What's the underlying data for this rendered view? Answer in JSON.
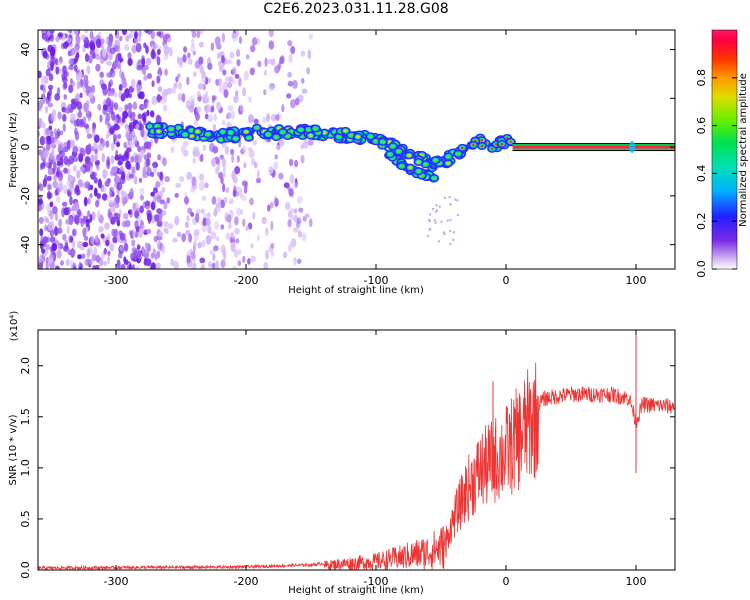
{
  "title": "C2E6.2023.031.11.28.G08",
  "chart_data": [
    {
      "type": "heatmap",
      "xlabel": "Height of straight line (km)",
      "ylabel": "Frequency (Hz)",
      "xlim": [
        -360,
        130
      ],
      "ylim": [
        -50,
        48
      ],
      "xticks": [
        -300,
        -200,
        -100,
        0,
        100
      ],
      "yticks": [
        -40,
        -20,
        0,
        20,
        40
      ],
      "colorbar": {
        "label": "Normalized spectral amplitude",
        "range": [
          0.0,
          1.0
        ],
        "ticks": [
          0.0,
          0.2,
          0.4,
          0.6,
          0.8
        ],
        "tick_labels": [
          "0.0",
          "0.2",
          "0.4",
          "0.6",
          "0.8"
        ]
      },
      "ridge": {
        "x": [
          -270,
          -250,
          -230,
          -210,
          -190,
          -170,
          -150,
          -130,
          -110,
          -95,
          -85,
          -75,
          -65,
          -58,
          -50,
          -40,
          -30,
          -20,
          -10,
          0,
          130
        ],
        "y": [
          7,
          6,
          5,
          5,
          6,
          6,
          6,
          5,
          4,
          2,
          0,
          -3,
          -5,
          -7,
          -6,
          -4,
          0,
          2,
          0,
          2,
          0
        ]
      },
      "branch": {
        "x": [
          -90,
          -80,
          -70,
          -60,
          -55
        ],
        "y": [
          -3,
          -7,
          -10,
          -12,
          -13
        ]
      }
    },
    {
      "type": "line",
      "xlabel": "Height of straight line (km)",
      "ylabel": "SNR (10 * v/v)",
      "y_multiplier": "(x10⁴)",
      "xlim": [
        -360,
        130
      ],
      "ylim": [
        0,
        2.35
      ],
      "xticks": [
        -300,
        -200,
        -100,
        0,
        100
      ],
      "yticks": [
        0.0,
        0.5,
        1.0,
        1.5,
        2.0
      ],
      "ytick_labels": [
        "0.0",
        "0.5",
        "1.0",
        "1.5",
        "2.0"
      ],
      "color": "#ee3333",
      "envelope": {
        "x": [
          -360,
          -200,
          -150,
          -130,
          -100,
          -80,
          -60,
          -45,
          -40,
          -30,
          -20,
          -10,
          0,
          10,
          20,
          30,
          50,
          80,
          95,
          100,
          105,
          130
        ],
        "y": [
          0.02,
          0.03,
          0.05,
          0.08,
          0.12,
          0.18,
          0.25,
          0.35,
          0.55,
          0.85,
          1.05,
          1.15,
          1.25,
          1.4,
          1.58,
          1.68,
          1.72,
          1.72,
          1.68,
          1.45,
          1.62,
          1.6
        ]
      },
      "peaks": [
        {
          "x": -10,
          "y": 1.85
        },
        {
          "x": 100,
          "y": 2.35
        },
        {
          "x": 100,
          "y": 0.95
        }
      ]
    }
  ]
}
